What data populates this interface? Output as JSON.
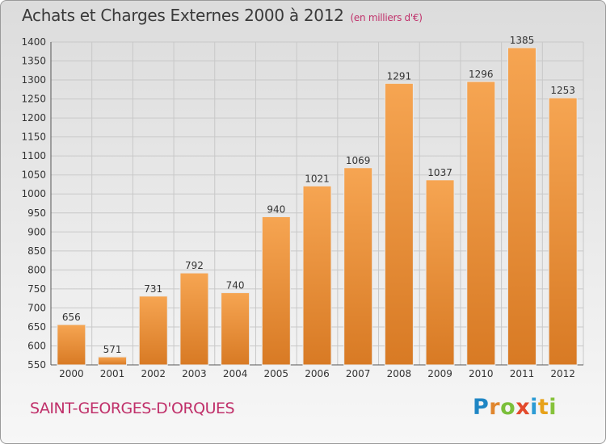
{
  "header": {
    "title": "Achats et Charges Externes 2000 à 2012",
    "subtitle": "(en milliers d'€)"
  },
  "footer": {
    "place": "SAINT-GEORGES-D'ORQUES",
    "logo_text": "Proxiti"
  },
  "colors": {
    "bar_light": "#f6a552",
    "bar_dark": "#d87a24",
    "title_accent": "#c0306a",
    "grid": "#c8c8c8"
  },
  "chart_data": {
    "type": "bar",
    "categories": [
      "2000",
      "2001",
      "2002",
      "2003",
      "2004",
      "2005",
      "2006",
      "2007",
      "2008",
      "2009",
      "2010",
      "2011",
      "2012"
    ],
    "values": [
      656,
      571,
      731,
      792,
      740,
      940,
      1021,
      1069,
      1291,
      1037,
      1296,
      1385,
      1253
    ],
    "ylim": [
      550,
      1400
    ],
    "yticks": [
      550,
      600,
      650,
      700,
      750,
      800,
      850,
      900,
      950,
      1000,
      1050,
      1100,
      1150,
      1200,
      1250,
      1300,
      1350,
      1400
    ],
    "grid": true,
    "data_labels": true
  }
}
